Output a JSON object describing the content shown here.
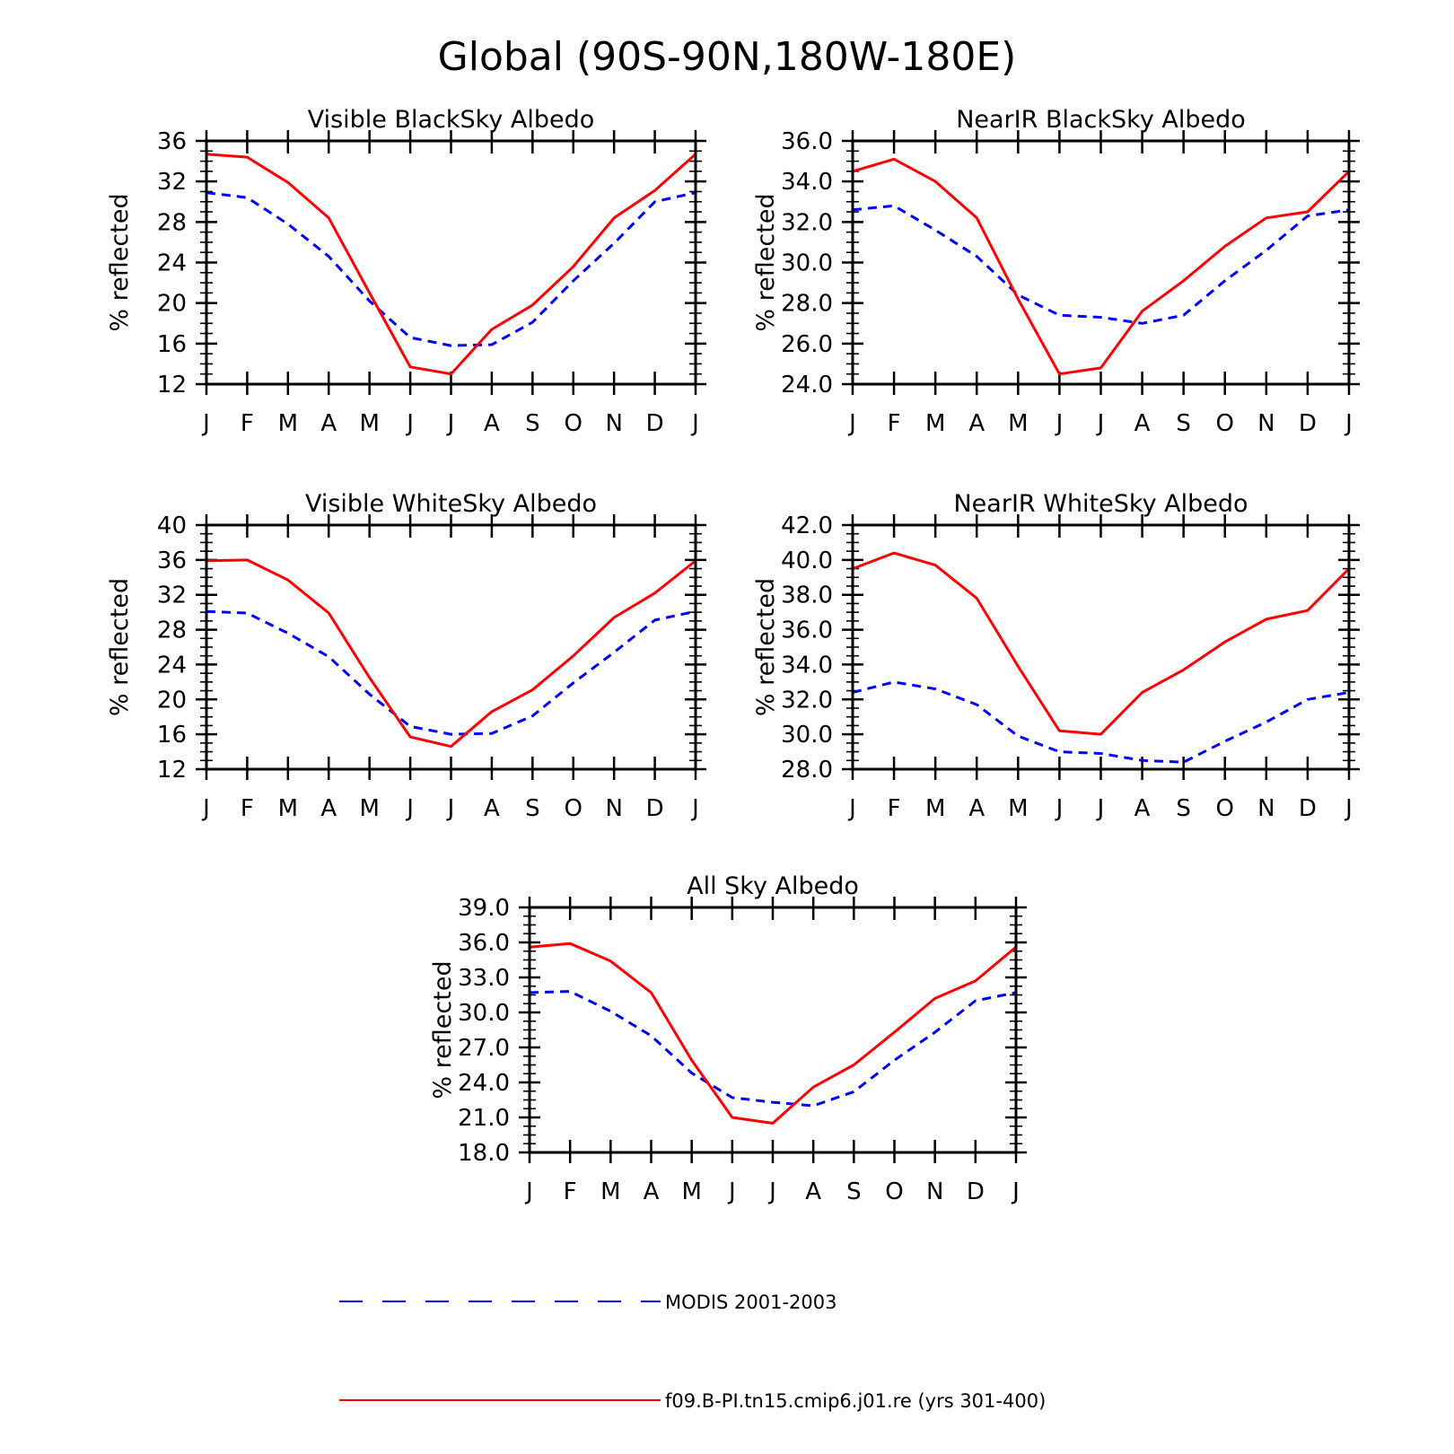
{
  "main_title": "Global (90S-90N,180W-180E)",
  "legend": [
    {
      "label": "MODIS 2001-2003",
      "color": "#0000ff",
      "dash": "dashed"
    },
    {
      "label": "f09.B-PI.tn15.cmip6.j01.re (yrs 301-400)",
      "color": "#ff0000",
      "dash": "solid"
    }
  ],
  "chart_data": [
    {
      "type": "line",
      "title": "Visible BlackSky Albedo",
      "ylabel": "% reflected",
      "xlabel": "",
      "categories": [
        "J",
        "F",
        "M",
        "A",
        "M",
        "J",
        "J",
        "A",
        "S",
        "O",
        "N",
        "D",
        "J"
      ],
      "ylim": [
        12,
        36
      ],
      "yticks": [
        "12",
        "16",
        "20",
        "24",
        "28",
        "32",
        "36"
      ],
      "series": [
        {
          "name": "MODIS 2001-2003",
          "values": [
            30.9,
            30.4,
            27.8,
            24.6,
            20.2,
            16.6,
            15.8,
            15.9,
            18.1,
            22.2,
            25.9,
            30.0,
            30.9
          ]
        },
        {
          "name": "f09.B-PI.tn15.cmip6.j01.re (yrs 301-400)",
          "values": [
            34.7,
            34.4,
            31.9,
            28.4,
            21.0,
            13.7,
            13.0,
            17.4,
            19.8,
            23.6,
            28.4,
            31.1,
            34.7
          ]
        }
      ]
    },
    {
      "type": "line",
      "title": "NearIR BlackSky Albedo",
      "ylabel": "% reflected",
      "xlabel": "",
      "categories": [
        "J",
        "F",
        "M",
        "A",
        "M",
        "J",
        "J",
        "A",
        "S",
        "O",
        "N",
        "D",
        "J"
      ],
      "ylim": [
        24,
        36
      ],
      "yticks": [
        "24.0",
        "26.0",
        "28.0",
        "30.0",
        "32.0",
        "34.0",
        "36.0"
      ],
      "series": [
        {
          "name": "MODIS 2001-2003",
          "values": [
            32.6,
            32.8,
            31.6,
            30.3,
            28.4,
            27.4,
            27.3,
            27.0,
            27.4,
            29.1,
            30.6,
            32.3,
            32.6
          ]
        },
        {
          "name": "f09.B-PI.tn15.cmip6.j01.re (yrs 301-400)",
          "values": [
            34.5,
            35.1,
            34.0,
            32.2,
            28.2,
            24.5,
            24.8,
            27.6,
            29.1,
            30.8,
            32.2,
            32.5,
            34.5
          ]
        }
      ]
    },
    {
      "type": "line",
      "title": "Visible WhiteSky Albedo",
      "ylabel": "% reflected",
      "xlabel": "",
      "categories": [
        "J",
        "F",
        "M",
        "A",
        "M",
        "J",
        "J",
        "A",
        "S",
        "O",
        "N",
        "D",
        "J"
      ],
      "ylim": [
        12,
        40
      ],
      "yticks": [
        "12",
        "16",
        "20",
        "24",
        "28",
        "32",
        "36",
        "40"
      ],
      "series": [
        {
          "name": "MODIS 2001-2003",
          "values": [
            30.1,
            29.9,
            27.6,
            24.9,
            20.6,
            16.9,
            16.0,
            16.1,
            18.1,
            21.9,
            25.4,
            29.1,
            30.1
          ]
        },
        {
          "name": "f09.B-PI.tn15.cmip6.j01.re (yrs 301-400)",
          "values": [
            35.9,
            36.0,
            33.7,
            29.9,
            22.5,
            15.7,
            14.6,
            18.6,
            21.1,
            25.0,
            29.4,
            32.2,
            35.9
          ]
        }
      ]
    },
    {
      "type": "line",
      "title": "NearIR WhiteSky Albedo",
      "ylabel": "% reflected",
      "xlabel": "",
      "categories": [
        "J",
        "F",
        "M",
        "A",
        "M",
        "J",
        "J",
        "A",
        "S",
        "O",
        "N",
        "D",
        "J"
      ],
      "ylim": [
        28,
        42
      ],
      "yticks": [
        "28.0",
        "30.0",
        "32.0",
        "34.0",
        "36.0",
        "38.0",
        "40.0",
        "42.0"
      ],
      "series": [
        {
          "name": "MODIS 2001-2003",
          "values": [
            32.4,
            33.0,
            32.6,
            31.7,
            29.9,
            29.0,
            28.9,
            28.5,
            28.4,
            29.6,
            30.7,
            32.0,
            32.4
          ]
        },
        {
          "name": "f09.B-PI.tn15.cmip6.j01.re (yrs 301-400)",
          "values": [
            39.5,
            40.4,
            39.7,
            37.8,
            33.9,
            30.2,
            30.0,
            32.4,
            33.7,
            35.3,
            36.6,
            37.1,
            39.5
          ]
        }
      ]
    },
    {
      "type": "line",
      "title": "All Sky Albedo",
      "ylabel": "% reflected",
      "xlabel": "",
      "categories": [
        "J",
        "F",
        "M",
        "A",
        "M",
        "J",
        "J",
        "A",
        "S",
        "O",
        "N",
        "D",
        "J"
      ],
      "ylim": [
        18,
        39
      ],
      "yticks": [
        "18.0",
        "21.0",
        "24.0",
        "27.0",
        "30.0",
        "33.0",
        "36.0",
        "39.0"
      ],
      "series": [
        {
          "name": "MODIS 2001-2003",
          "values": [
            31.7,
            31.8,
            30.1,
            28.0,
            24.8,
            22.7,
            22.3,
            22.0,
            23.2,
            25.9,
            28.3,
            31.0,
            31.7
          ]
        },
        {
          "name": "f09.B-PI.tn15.cmip6.j01.re (yrs 301-400)",
          "values": [
            35.6,
            35.9,
            34.4,
            31.7,
            25.9,
            21.0,
            20.5,
            23.6,
            25.5,
            28.3,
            31.2,
            32.7,
            35.6
          ]
        }
      ]
    }
  ]
}
